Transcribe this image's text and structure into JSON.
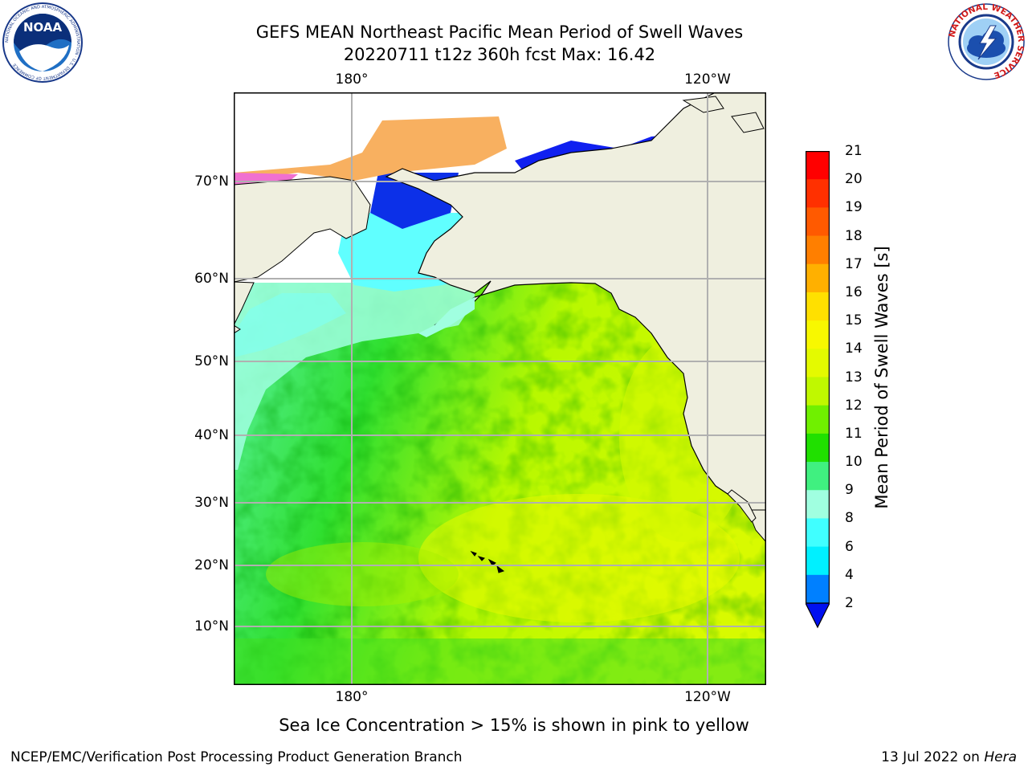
{
  "header": {
    "title_line1": "GEFS MEAN Northeast Pacific Mean Period of Swell Waves",
    "title_line2": "20220711 t12z 360h fcst   Max: 16.42"
  },
  "logos": {
    "left": {
      "icon": "noaa-logo",
      "text": "NOAA",
      "ring_text": "NATIONAL OCEANIC AND ATMOSPHERIC ADMINISTRATION · U.S. DEPARTMENT OF COMMERCE"
    },
    "right": {
      "icon": "nws-logo",
      "ring_text": "NATIONAL WEATHER SERVICE"
    }
  },
  "map": {
    "lon_ticks": [
      "180°",
      "120°W"
    ],
    "lat_ticks": [
      "70°N",
      "60°N",
      "50°N",
      "40°N",
      "30°N",
      "20°N",
      "10°N"
    ],
    "colors": {
      "land": "#efefdf",
      "grid": "#b0b0b0",
      "coast": "#000000"
    }
  },
  "colorbar": {
    "title": "Mean Period of Swell Waves [s]",
    "levels": [
      "21",
      "20",
      "19",
      "18",
      "17",
      "16",
      "15",
      "14",
      "13",
      "12",
      "11",
      "10",
      "9",
      "8",
      "6",
      "4",
      "2"
    ],
    "colors_top_to_bottom": [
      "#ff0000",
      "#ff3000",
      "#ff5a00",
      "#ff7f00",
      "#ffb000",
      "#ffe000",
      "#f8f800",
      "#e4fa00",
      "#c0f800",
      "#70f000",
      "#20e000",
      "#40f080",
      "#a0ffe0",
      "#40ffff",
      "#00f0ff",
      "#0080ff"
    ],
    "extend_color": "#0010f0"
  },
  "note": "Sea Ice Concentration > 15% is shown in pink to yellow",
  "footer": {
    "left": "NCEP/EMC/Verification Post Processing Product Generation Branch",
    "right_date": "13 Jul 2022 on ",
    "right_machine": "Hera"
  }
}
